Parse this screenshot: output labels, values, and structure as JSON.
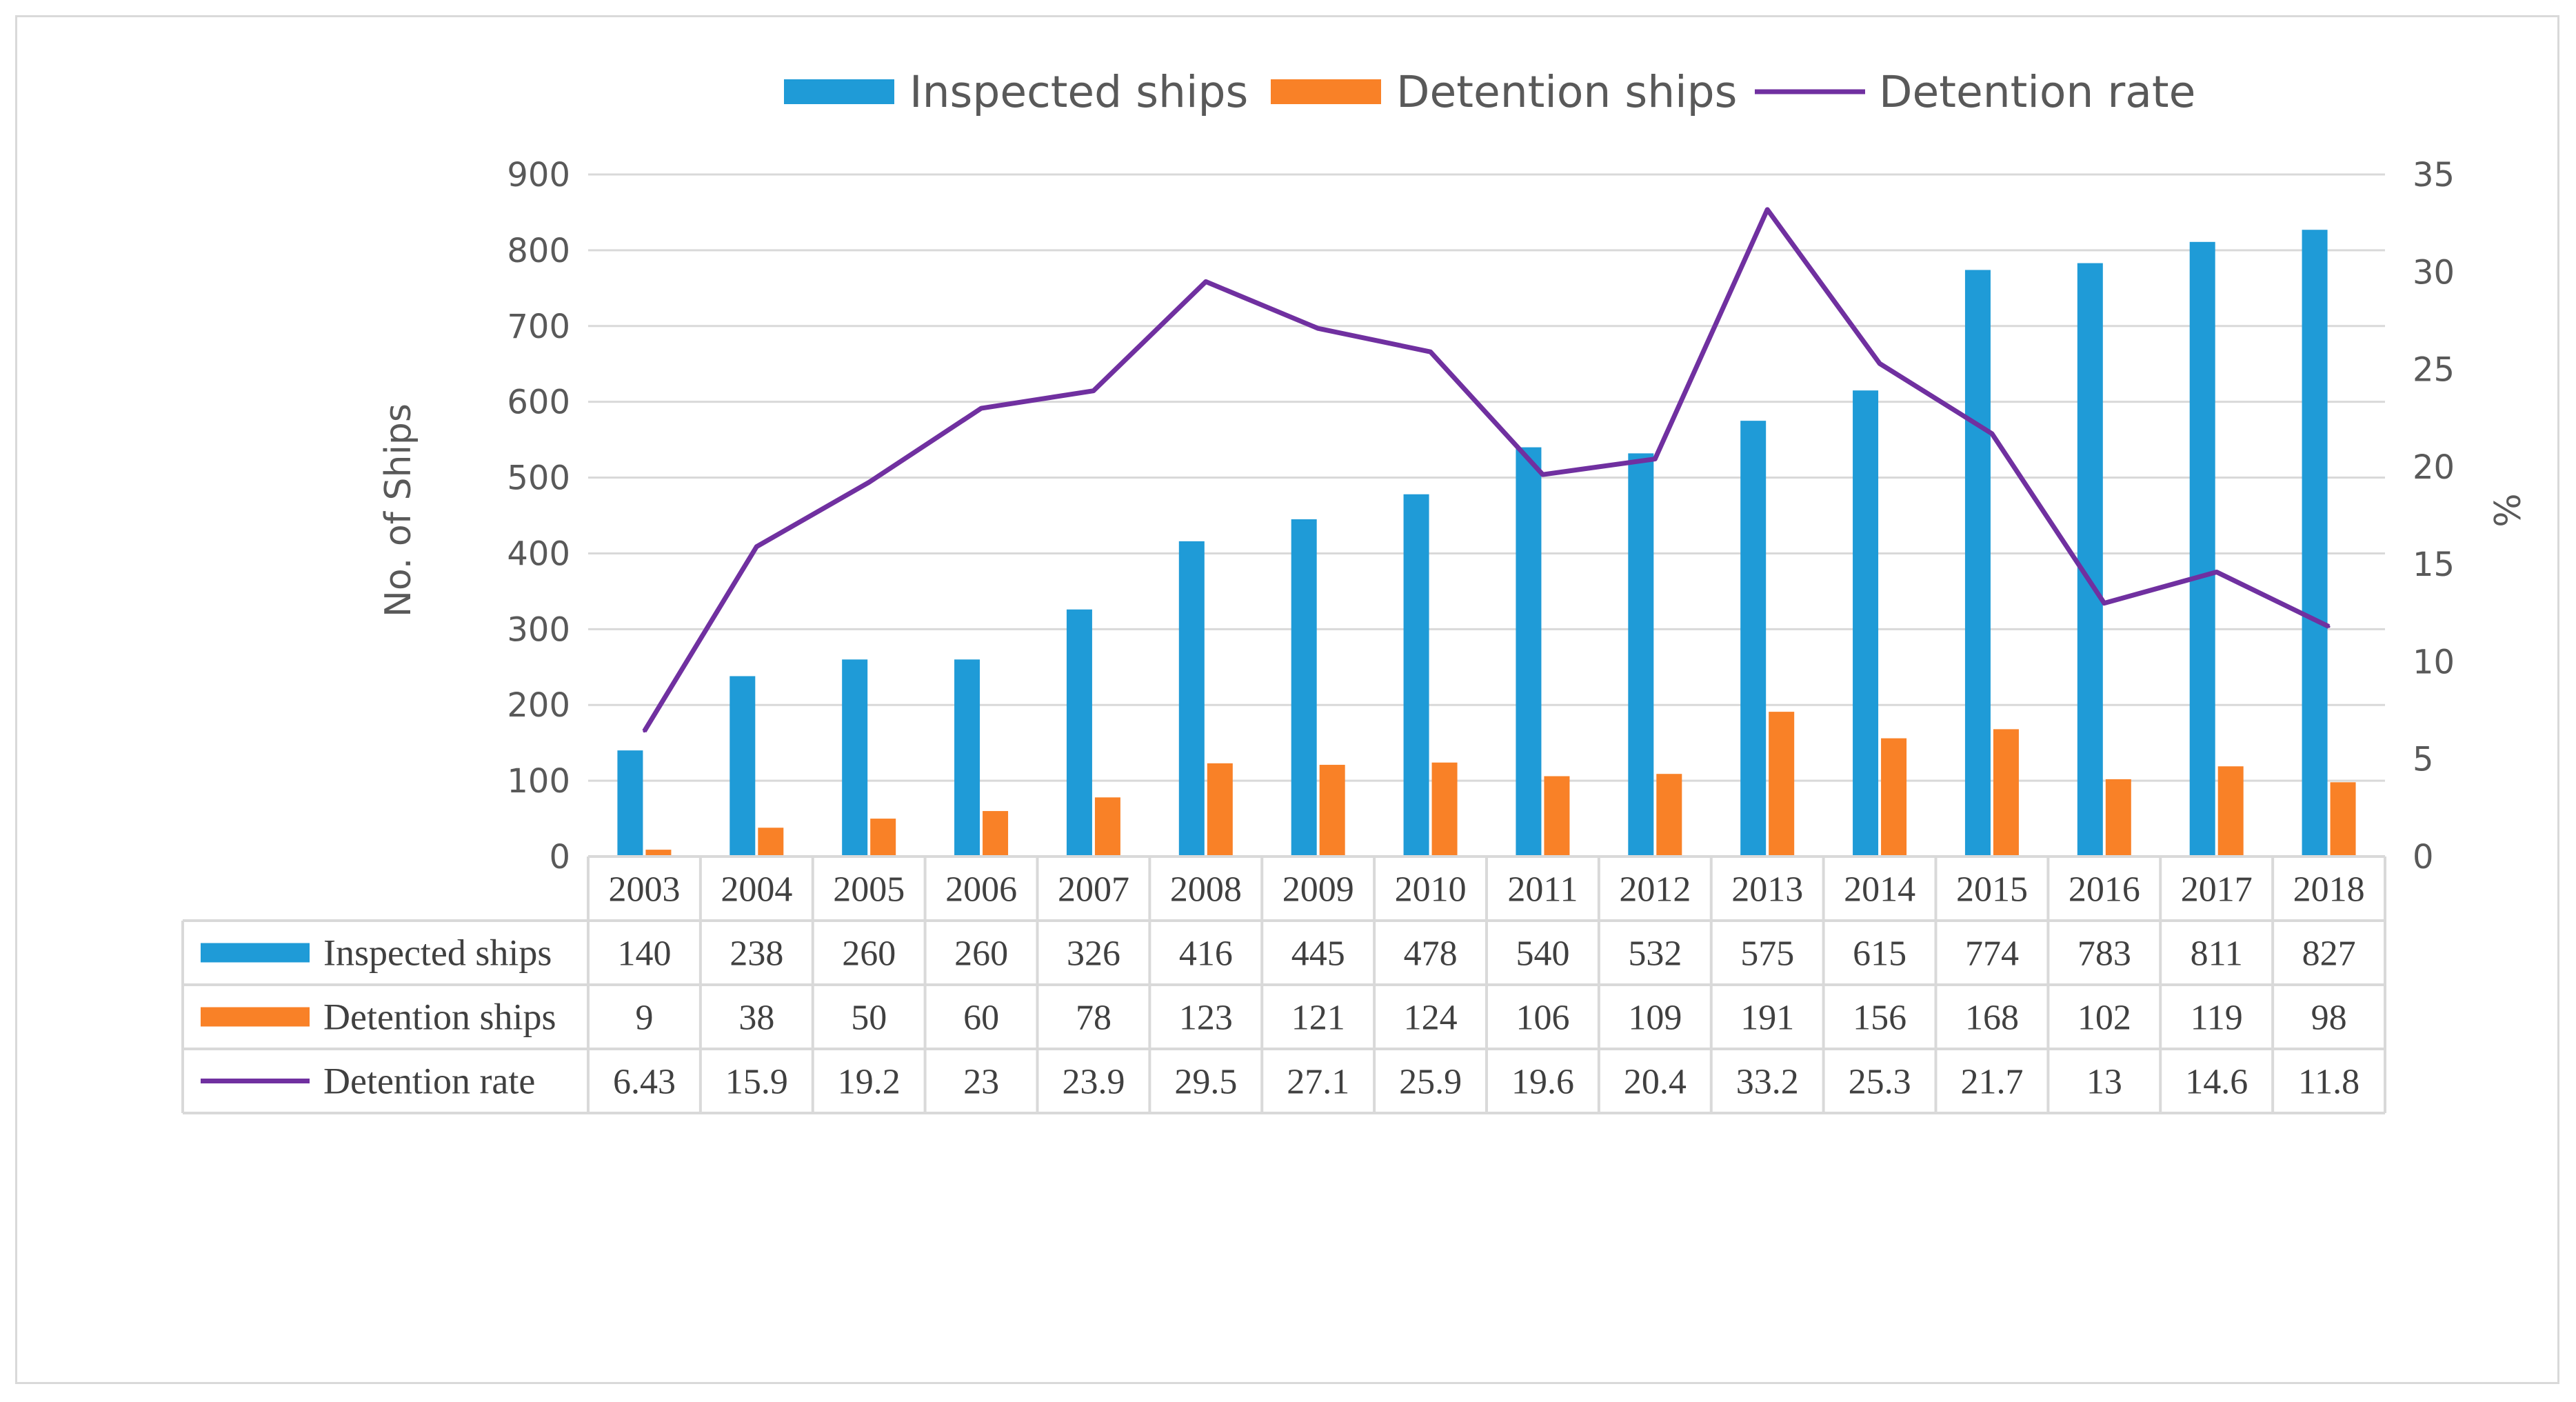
{
  "chart_data": {
    "type": "bar",
    "title": "",
    "categories": [
      "2003",
      "2004",
      "2005",
      "2006",
      "2007",
      "2008",
      "2009",
      "2010",
      "2011",
      "2012",
      "2013",
      "2014",
      "2015",
      "2016",
      "2017",
      "2018"
    ],
    "series": [
      {
        "name": "Inspected ships",
        "type": "bar",
        "axis": "left",
        "color": "#1f9bd7",
        "values": [
          140,
          238,
          260,
          260,
          326,
          416,
          445,
          478,
          540,
          532,
          575,
          615,
          774,
          783,
          811,
          827
        ]
      },
      {
        "name": "Detention ships",
        "type": "bar",
        "axis": "left",
        "color": "#f98127",
        "values": [
          9,
          38,
          50,
          60,
          78,
          123,
          121,
          124,
          106,
          109,
          191,
          156,
          168,
          102,
          119,
          98
        ]
      },
      {
        "name": "Detention rate",
        "type": "line",
        "axis": "right",
        "color": "#7030a0",
        "values": [
          6.43,
          15.9,
          19.2,
          23,
          23.9,
          29.5,
          27.1,
          25.9,
          19.6,
          20.4,
          33.2,
          25.3,
          21.7,
          13,
          14.6,
          11.8
        ]
      }
    ],
    "ylabel": "No. of Ships",
    "y2label": "%",
    "ylim": [
      0,
      900
    ],
    "y2lim": [
      0,
      35
    ],
    "yticks": [
      "0",
      "100",
      "200",
      "300",
      "400",
      "500",
      "600",
      "700",
      "800",
      "900"
    ],
    "y2ticks": [
      "0",
      "5",
      "10",
      "15",
      "20",
      "25",
      "30",
      "35"
    ],
    "table_labels": [
      "2003",
      "2004",
      "2005",
      "2006",
      "2007",
      "2008",
      "2009",
      "2010",
      "2011",
      "2012",
      "2013",
      "2014",
      "2015",
      "2016",
      "2017",
      "2018"
    ],
    "table_values": [
      [
        "140",
        "238",
        "260",
        "260",
        "326",
        "416",
        "445",
        "478",
        "540",
        "532",
        "575",
        "615",
        "774",
        "783",
        "811",
        "827"
      ],
      [
        "9",
        "38",
        "50",
        "60",
        "78",
        "123",
        "121",
        "124",
        "106",
        "109",
        "191",
        "156",
        "168",
        "102",
        "119",
        "98"
      ],
      [
        "6.43",
        "15.9",
        "19.2",
        "23",
        "23.9",
        "29.5",
        "27.1",
        "25.9",
        "19.6",
        "20.4",
        "33.2",
        "25.3",
        "21.7",
        "13",
        "14.6",
        "11.8"
      ]
    ],
    "grid": true,
    "legend": "top-center"
  }
}
